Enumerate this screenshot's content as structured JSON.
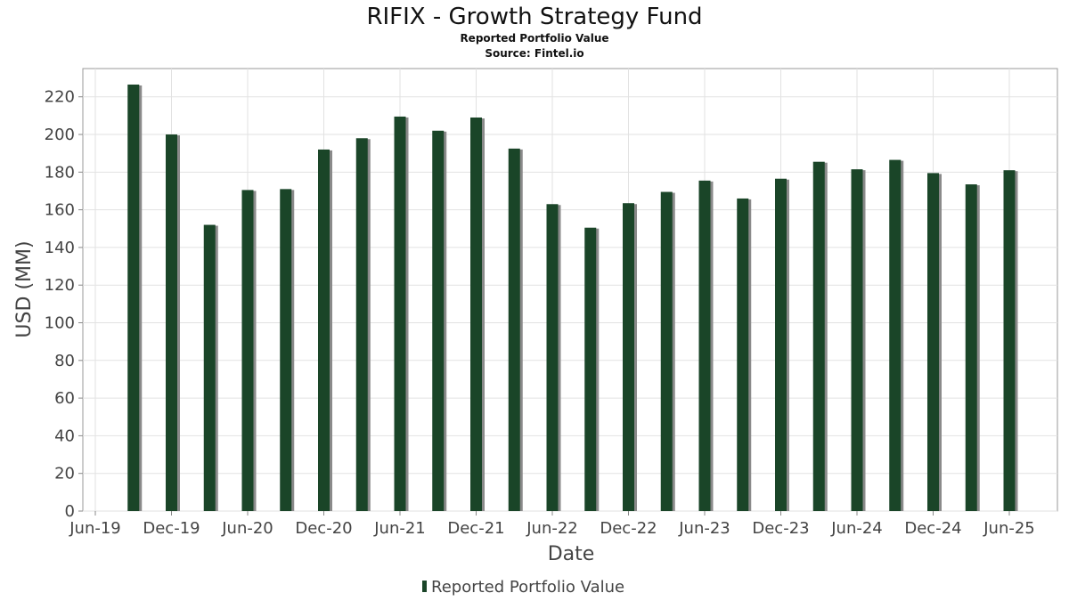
{
  "chart_data": {
    "type": "bar",
    "title": "RIFIX - Growth Strategy Fund",
    "subtitle": "Reported Portfolio Value",
    "source": "Source: Fintel.io",
    "xlabel": "Date",
    "ylabel": "USD (MM)",
    "ylim": [
      0,
      235
    ],
    "yticks": [
      0,
      20,
      40,
      60,
      80,
      100,
      120,
      140,
      160,
      180,
      200,
      220
    ],
    "xticks": [
      "Jun-19",
      "Dec-19",
      "Jun-20",
      "Dec-20",
      "Jun-21",
      "Dec-21",
      "Jun-22",
      "Dec-22",
      "Jun-23",
      "Dec-23",
      "Jun-24",
      "Dec-24",
      "Jun-25"
    ],
    "grid": true,
    "legend": {
      "position": "bottom",
      "entries": [
        "Reported Portfolio Value"
      ]
    },
    "series": [
      {
        "name": "Reported Portfolio Value",
        "color": "#1a4528",
        "values": [
          226.5,
          200,
          152,
          170.5,
          171,
          192,
          198,
          209.5,
          202,
          209,
          192.5,
          163,
          150.5,
          163.5,
          169.5,
          175.5,
          166,
          176.5,
          185.5,
          181.5,
          186.5,
          179.5,
          173.5,
          181
        ]
      }
    ]
  }
}
